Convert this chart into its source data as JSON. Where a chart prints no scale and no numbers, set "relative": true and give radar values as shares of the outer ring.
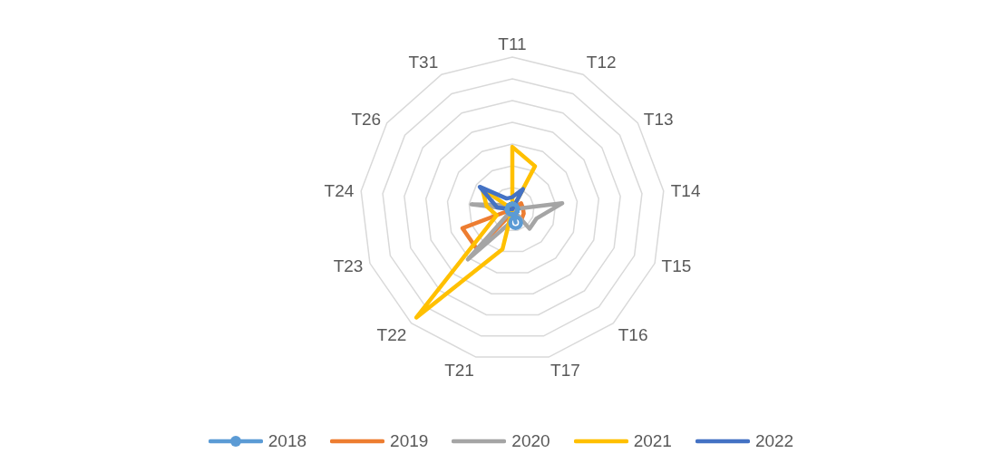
{
  "chart_data": {
    "type": "radar",
    "relative": true,
    "grid": true,
    "legend": "bottom",
    "categories": [
      "T11",
      "T12",
      "T13",
      "T14",
      "T15",
      "T16",
      "T17",
      "T21",
      "T22",
      "T23",
      "T24",
      "T26",
      "T31"
    ],
    "series": [
      {
        "name": "2018",
        "color": "#5b9bd5",
        "marker": "circle",
        "values": [
          null,
          null,
          null,
          null,
          null,
          null,
          0.09,
          null,
          null,
          null,
          null,
          null,
          null
        ]
      },
      {
        "name": "2019",
        "color": "#ed7d31",
        "marker": "none",
        "values": [
          null,
          null,
          0.07,
          0.07,
          0.08,
          0.09,
          0.03,
          0.03,
          0.35,
          0.35,
          null,
          null,
          null
        ]
      },
      {
        "name": "2020",
        "color": "#a5a5a5",
        "marker": "none",
        "values": [
          null,
          null,
          null,
          0.33,
          0.17,
          0.17,
          null,
          0.1,
          0.44,
          null,
          0.27,
          0.05,
          null
        ]
      },
      {
        "name": "2021",
        "color": "#ffc000",
        "marker": "none",
        "values": [
          0.41,
          0.32,
          null,
          null,
          null,
          null,
          null,
          0.27,
          0.95,
          0.11,
          0.17,
          0.24,
          null
        ]
      },
      {
        "name": "2022",
        "color": "#4472c4",
        "marker": "none",
        "values": [
          0.08,
          0.15,
          null,
          null,
          null,
          null,
          null,
          null,
          null,
          null,
          0.1,
          0.26,
          0.08
        ]
      }
    ]
  }
}
